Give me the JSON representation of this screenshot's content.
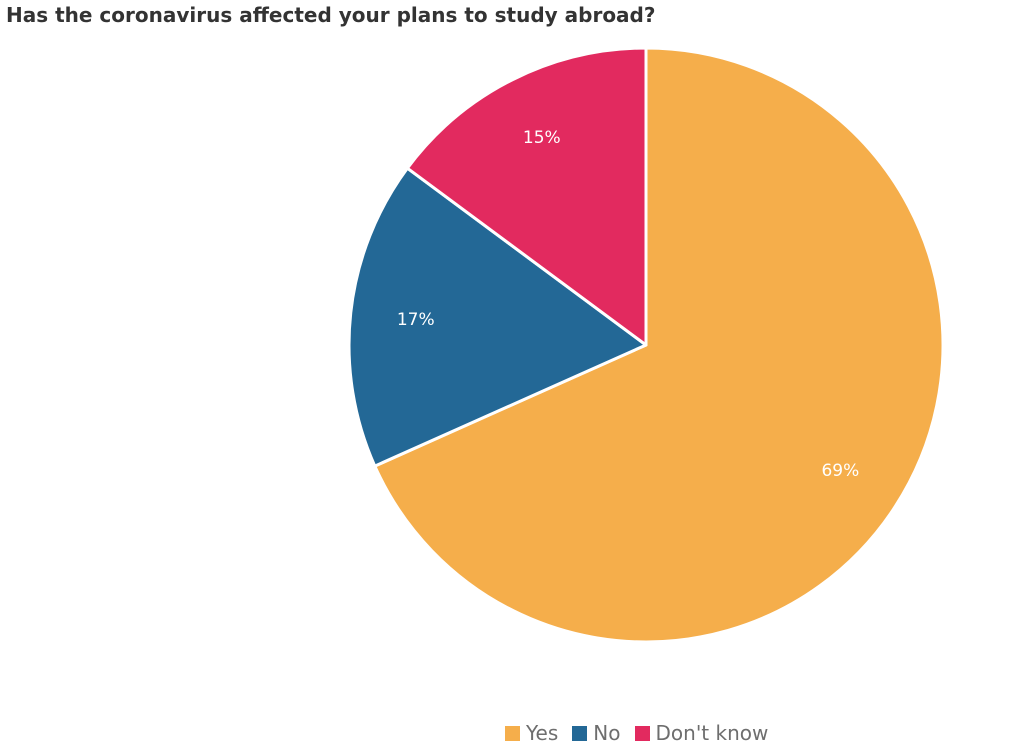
{
  "chart_data": {
    "type": "pie",
    "title": "Has the coronavirus affected your plans to study abroad?",
    "categories": [
      "Yes",
      "No",
      "Don't know"
    ],
    "values": [
      69,
      17,
      15
    ],
    "labels": [
      "69%",
      "17%",
      "15%"
    ],
    "colors": [
      "#f5ae4b",
      "#236896",
      "#e22a5f"
    ],
    "start_position": "top",
    "direction": "clockwise",
    "legend_position": "bottom-right"
  },
  "legend": {
    "items": [
      {
        "label": "Yes",
        "color": "#f5ae4b"
      },
      {
        "label": "No",
        "color": "#236896"
      },
      {
        "label": "Don't know",
        "color": "#e22a5f"
      }
    ]
  }
}
